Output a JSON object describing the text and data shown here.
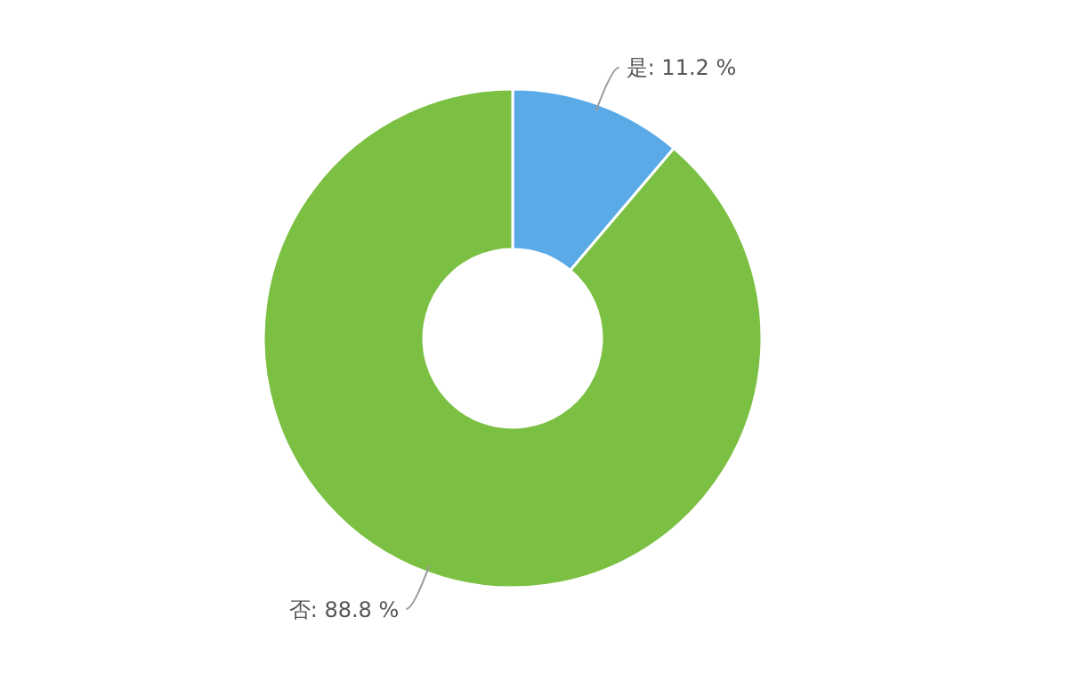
{
  "chart_data": {
    "type": "donut",
    "categories": [
      "是",
      "否"
    ],
    "values": [
      11.2,
      88.8
    ],
    "colors": [
      "#5aaae8",
      "#7bc043"
    ],
    "value_labels": [
      "11.2 %",
      "88.8 %"
    ]
  }
}
